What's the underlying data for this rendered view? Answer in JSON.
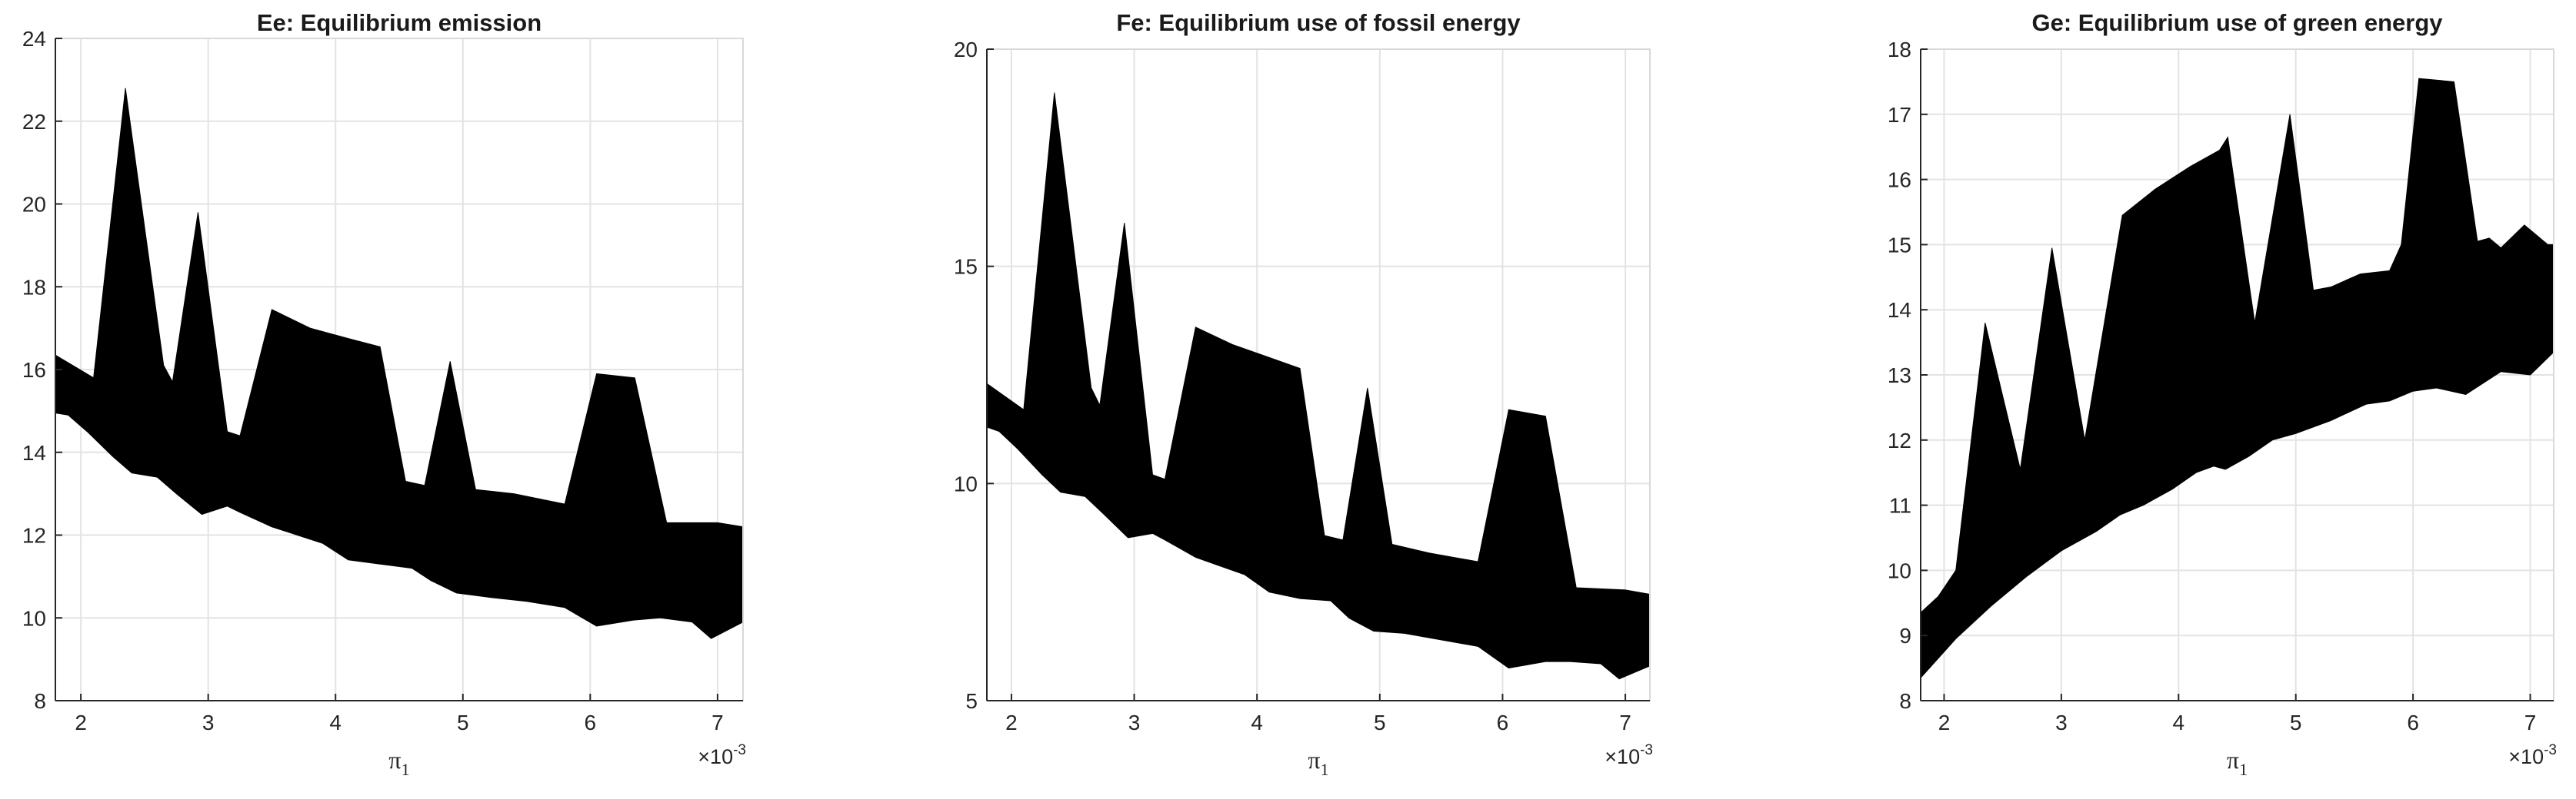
{
  "chart_data": [
    {
      "type": "area",
      "title": "Ee: Equilibrium emission",
      "xlabel": "π",
      "xlabel_subscript": "1",
      "x_exponent_label": "×10",
      "x_exponent_power": "-3",
      "xlim": [
        1.8,
        7.2
      ],
      "ylim": [
        8,
        24
      ],
      "x_ticks": [
        2,
        3,
        4,
        5,
        6,
        7
      ],
      "y_ticks": [
        8,
        10,
        12,
        14,
        16,
        18,
        20,
        22,
        24
      ],
      "grid": true,
      "color": "#000000",
      "upper": [
        [
          1.8,
          16.35
        ],
        [
          2.1,
          15.8
        ],
        [
          2.35,
          22.8
        ],
        [
          2.65,
          16.1
        ],
        [
          2.72,
          15.7
        ],
        [
          2.92,
          19.8
        ],
        [
          3.15,
          14.5
        ],
        [
          3.25,
          14.4
        ],
        [
          3.5,
          17.45
        ],
        [
          3.8,
          17.0
        ],
        [
          4.1,
          16.75
        ],
        [
          4.35,
          16.55
        ],
        [
          4.55,
          13.3
        ],
        [
          4.7,
          13.2
        ],
        [
          4.9,
          16.2
        ],
        [
          5.1,
          13.1
        ],
        [
          5.4,
          13.0
        ],
        [
          5.8,
          12.75
        ],
        [
          6.05,
          15.9
        ],
        [
          6.35,
          15.8
        ],
        [
          6.6,
          12.3
        ],
        [
          7.0,
          12.3
        ],
        [
          7.2,
          12.2
        ]
      ],
      "lower": [
        [
          1.8,
          14.95
        ],
        [
          1.9,
          14.9
        ],
        [
          2.05,
          14.5
        ],
        [
          2.25,
          13.9
        ],
        [
          2.4,
          13.5
        ],
        [
          2.6,
          13.4
        ],
        [
          2.75,
          13.0
        ],
        [
          2.95,
          12.5
        ],
        [
          3.15,
          12.7
        ],
        [
          3.25,
          12.55
        ],
        [
          3.5,
          12.2
        ],
        [
          3.7,
          12.0
        ],
        [
          3.9,
          11.8
        ],
        [
          4.1,
          11.4
        ],
        [
          4.35,
          11.3
        ],
        [
          4.6,
          11.2
        ],
        [
          4.75,
          10.9
        ],
        [
          4.95,
          10.6
        ],
        [
          5.2,
          10.5
        ],
        [
          5.5,
          10.4
        ],
        [
          5.8,
          10.25
        ],
        [
          6.05,
          9.8
        ],
        [
          6.35,
          9.95
        ],
        [
          6.55,
          10.0
        ],
        [
          6.8,
          9.9
        ],
        [
          6.95,
          9.5
        ],
        [
          7.2,
          9.9
        ]
      ]
    },
    {
      "type": "area",
      "title": "Fe: Equilibrium use of fossil energy",
      "xlabel": "π",
      "xlabel_subscript": "1",
      "x_exponent_label": "×10",
      "x_exponent_power": "-3",
      "xlim": [
        1.8,
        7.2
      ],
      "ylim": [
        5,
        20
      ],
      "x_ticks": [
        2,
        3,
        4,
        5,
        6,
        7
      ],
      "y_ticks": [
        5,
        10,
        15,
        20
      ],
      "grid": true,
      "color": "#000000",
      "upper": [
        [
          1.8,
          12.3
        ],
        [
          2.1,
          11.7
        ],
        [
          2.35,
          19.0
        ],
        [
          2.65,
          12.2
        ],
        [
          2.72,
          11.8
        ],
        [
          2.92,
          16.0
        ],
        [
          3.15,
          10.2
        ],
        [
          3.25,
          10.1
        ],
        [
          3.5,
          13.6
        ],
        [
          3.8,
          13.2
        ],
        [
          4.1,
          12.9
        ],
        [
          4.35,
          12.65
        ],
        [
          4.55,
          8.8
        ],
        [
          4.7,
          8.7
        ],
        [
          4.9,
          12.2
        ],
        [
          5.1,
          8.6
        ],
        [
          5.4,
          8.4
        ],
        [
          5.8,
          8.2
        ],
        [
          6.05,
          11.7
        ],
        [
          6.35,
          11.55
        ],
        [
          6.6,
          7.6
        ],
        [
          7.0,
          7.55
        ],
        [
          7.2,
          7.45
        ]
      ],
      "lower": [
        [
          1.8,
          11.3
        ],
        [
          1.9,
          11.2
        ],
        [
          2.05,
          10.8
        ],
        [
          2.25,
          10.2
        ],
        [
          2.4,
          9.8
        ],
        [
          2.6,
          9.7
        ],
        [
          2.75,
          9.3
        ],
        [
          2.95,
          8.75
        ],
        [
          3.15,
          8.85
        ],
        [
          3.25,
          8.7
        ],
        [
          3.5,
          8.3
        ],
        [
          3.7,
          8.1
        ],
        [
          3.9,
          7.9
        ],
        [
          4.1,
          7.5
        ],
        [
          4.35,
          7.35
        ],
        [
          4.6,
          7.3
        ],
        [
          4.75,
          6.9
        ],
        [
          4.95,
          6.6
        ],
        [
          5.2,
          6.55
        ],
        [
          5.5,
          6.4
        ],
        [
          5.8,
          6.25
        ],
        [
          6.05,
          5.75
        ],
        [
          6.35,
          5.9
        ],
        [
          6.55,
          5.9
        ],
        [
          6.8,
          5.85
        ],
        [
          6.95,
          5.5
        ],
        [
          7.2,
          5.8
        ]
      ]
    },
    {
      "type": "area",
      "title": "Ge: Equilibrium use of green energy",
      "xlabel": "π",
      "xlabel_subscript": "1",
      "x_exponent_label": "×10",
      "x_exponent_power": "-3",
      "xlim": [
        1.8,
        7.2
      ],
      "ylim": [
        8,
        18
      ],
      "x_ticks": [
        2,
        3,
        4,
        5,
        6,
        7
      ],
      "y_ticks": [
        8,
        9,
        10,
        11,
        12,
        13,
        14,
        15,
        16,
        17,
        18
      ],
      "grid": true,
      "color": "#000000",
      "upper": [
        [
          1.8,
          9.35
        ],
        [
          1.95,
          9.6
        ],
        [
          2.1,
          10.0
        ],
        [
          2.35,
          13.8
        ],
        [
          2.65,
          11.55
        ],
        [
          2.92,
          14.95
        ],
        [
          3.2,
          12.0
        ],
        [
          3.52,
          15.45
        ],
        [
          3.8,
          15.85
        ],
        [
          4.1,
          16.2
        ],
        [
          4.35,
          16.45
        ],
        [
          4.42,
          16.65
        ],
        [
          4.65,
          13.8
        ],
        [
          4.95,
          17.0
        ],
        [
          5.15,
          14.3
        ],
        [
          5.3,
          14.35
        ],
        [
          5.55,
          14.55
        ],
        [
          5.8,
          14.6
        ],
        [
          5.9,
          15.0
        ],
        [
          6.05,
          17.55
        ],
        [
          6.35,
          17.5
        ],
        [
          6.55,
          15.05
        ],
        [
          6.65,
          15.1
        ],
        [
          6.75,
          14.95
        ],
        [
          6.95,
          15.3
        ],
        [
          7.15,
          15.0
        ],
        [
          7.2,
          15.0
        ]
      ],
      "lower": [
        [
          1.8,
          8.35
        ],
        [
          2.1,
          8.95
        ],
        [
          2.4,
          9.45
        ],
        [
          2.7,
          9.9
        ],
        [
          3.0,
          10.3
        ],
        [
          3.3,
          10.6
        ],
        [
          3.5,
          10.85
        ],
        [
          3.7,
          11.0
        ],
        [
          3.95,
          11.25
        ],
        [
          4.15,
          11.5
        ],
        [
          4.3,
          11.6
        ],
        [
          4.4,
          11.55
        ],
        [
          4.6,
          11.75
        ],
        [
          4.8,
          12.0
        ],
        [
          5.0,
          12.1
        ],
        [
          5.3,
          12.3
        ],
        [
          5.6,
          12.55
        ],
        [
          5.8,
          12.6
        ],
        [
          6.0,
          12.75
        ],
        [
          6.2,
          12.8
        ],
        [
          6.45,
          12.7
        ],
        [
          6.75,
          13.05
        ],
        [
          7.0,
          13.0
        ],
        [
          7.2,
          13.35
        ]
      ]
    }
  ]
}
